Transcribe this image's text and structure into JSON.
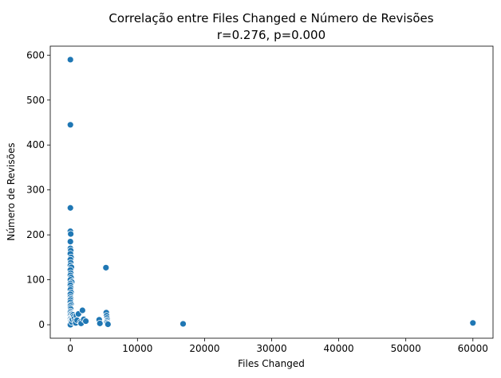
{
  "chart_data": {
    "type": "scatter",
    "title": "Correlação entre Files Changed e Número de Revisões",
    "subtitle": "r=0.276, p=0.000",
    "xlabel": "Files Changed",
    "ylabel": "Número de Revisões",
    "xlim": [
      -3000,
      63000
    ],
    "ylim": [
      -30,
      620
    ],
    "xticks": [
      0,
      10000,
      20000,
      30000,
      40000,
      50000,
      60000
    ],
    "xtick_labels": [
      "0",
      "10000",
      "20000",
      "30000",
      "40000",
      "50000",
      "60000"
    ],
    "yticks": [
      0,
      100,
      200,
      300,
      400,
      500,
      600
    ],
    "ytick_labels": [
      "0",
      "100",
      "200",
      "300",
      "400",
      "500",
      "600"
    ],
    "grid": false,
    "marker_color": "#1f77b4",
    "points": [
      [
        0,
        590
      ],
      [
        0,
        445
      ],
      [
        0,
        260
      ],
      [
        0,
        208
      ],
      [
        50,
        202
      ],
      [
        0,
        185
      ],
      [
        0,
        170
      ],
      [
        50,
        165
      ],
      [
        0,
        158
      ],
      [
        100,
        150
      ],
      [
        0,
        145
      ],
      [
        50,
        138
      ],
      [
        0,
        132
      ],
      [
        150,
        128
      ],
      [
        0,
        122
      ],
      [
        50,
        115
      ],
      [
        0,
        110
      ],
      [
        100,
        105
      ],
      [
        0,
        100
      ],
      [
        200,
        95
      ],
      [
        0,
        92
      ],
      [
        0,
        88
      ],
      [
        50,
        82
      ],
      [
        0,
        78
      ],
      [
        100,
        72
      ],
      [
        0,
        68
      ],
      [
        0,
        62
      ],
      [
        50,
        58
      ],
      [
        0,
        55
      ],
      [
        0,
        50
      ],
      [
        100,
        45
      ],
      [
        0,
        42
      ],
      [
        0,
        38
      ],
      [
        50,
        35
      ],
      [
        0,
        30
      ],
      [
        0,
        27
      ],
      [
        100,
        24
      ],
      [
        0,
        22
      ],
      [
        0,
        19
      ],
      [
        50,
        16
      ],
      [
        0,
        14
      ],
      [
        0,
        12
      ],
      [
        100,
        10
      ],
      [
        0,
        8
      ],
      [
        0,
        6
      ],
      [
        50,
        4
      ],
      [
        0,
        3
      ],
      [
        0,
        2
      ],
      [
        0,
        1
      ],
      [
        0,
        0
      ],
      [
        200,
        6
      ],
      [
        300,
        12
      ],
      [
        400,
        22
      ],
      [
        500,
        18
      ],
      [
        600,
        14
      ],
      [
        700,
        8
      ],
      [
        800,
        4
      ],
      [
        900,
        20
      ],
      [
        1000,
        10
      ],
      [
        1200,
        24
      ],
      [
        1500,
        6
      ],
      [
        1600,
        3
      ],
      [
        1800,
        32
      ],
      [
        2000,
        12
      ],
      [
        2300,
        8
      ],
      [
        4300,
        11
      ],
      [
        4400,
        3
      ],
      [
        5300,
        127
      ],
      [
        5350,
        27
      ],
      [
        5400,
        20
      ],
      [
        5450,
        15
      ],
      [
        5500,
        11
      ],
      [
        5450,
        8
      ],
      [
        5400,
        5
      ],
      [
        5500,
        3
      ],
      [
        5600,
        1
      ],
      [
        16800,
        2
      ],
      [
        60000,
        4
      ]
    ]
  }
}
